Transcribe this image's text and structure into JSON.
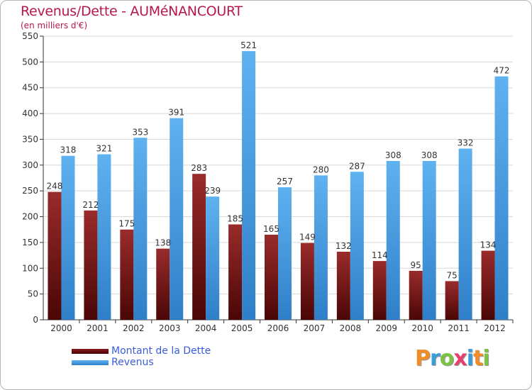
{
  "header": {
    "title": "Revenus/Dette - AUMéNANCOURT",
    "subtitle": "(en milliers d'€)"
  },
  "chart_data": {
    "type": "bar",
    "title": "Revenus/Dette - AUMéNANCOURT",
    "ylabel": "(en milliers d'€)",
    "xlabel": "",
    "ylim": [
      0,
      550
    ],
    "yticks": [
      0,
      50,
      100,
      150,
      200,
      250,
      300,
      350,
      400,
      450,
      500,
      550
    ],
    "grid": true,
    "categories": [
      "2000",
      "2001",
      "2002",
      "2003",
      "2004",
      "2005",
      "2006",
      "2007",
      "2008",
      "2009",
      "2010",
      "2011",
      "2012"
    ],
    "series": [
      {
        "name": "Montant de la Dette",
        "color": "#8b1a1a",
        "values": [
          248,
          212,
          175,
          138,
          283,
          185,
          165,
          149,
          132,
          114,
          95,
          75,
          134
        ]
      },
      {
        "name": "Revenus",
        "color": "#4da3e8",
        "values": [
          318,
          321,
          353,
          391,
          239,
          521,
          257,
          280,
          287,
          308,
          308,
          332,
          472
        ]
      }
    ],
    "legend": "bottom-left"
  },
  "logo": {
    "letters": [
      "P",
      "r",
      "o",
      "x",
      "i",
      "t",
      "i"
    ],
    "colors": [
      "#f28c28",
      "#3b9dd6",
      "#7cc243",
      "#e83f6f",
      "#3b9dd6",
      "#f28c28",
      "#7cc243"
    ]
  }
}
